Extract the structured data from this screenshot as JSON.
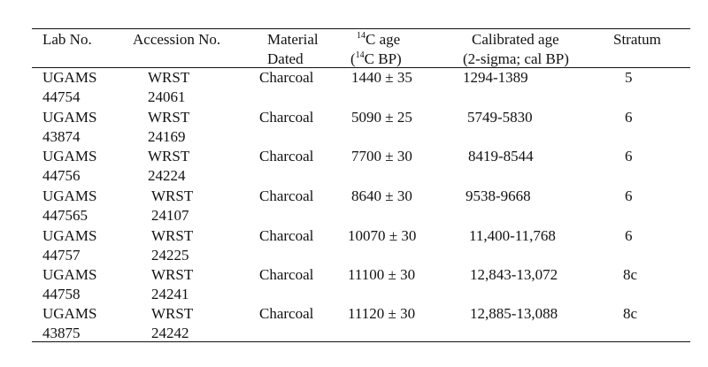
{
  "table": {
    "headers": {
      "lab_no": "Lab No.",
      "accession_no": "Accession No.",
      "material_line1": "Material",
      "material_line2": "Dated",
      "c14_line1_sup": "14",
      "c14_line1_text": "C age",
      "c14_line2_pre": "(",
      "c14_line2_sup": "14",
      "c14_line2_text": "C BP)",
      "calibrated_line1": "Calibrated age",
      "calibrated_line2": "(2-sigma; cal BP)",
      "stratum": "Stratum"
    },
    "rows": [
      {
        "lab1": "UGAMS",
        "lab2": "44754",
        "acc1": "WRST",
        "acc2": "24061",
        "material": "Charcoal",
        "c14_age": "1440 ± 35",
        "calibrated": "1294-1389",
        "stratum": "5"
      },
      {
        "lab1": "UGAMS",
        "lab2": "43874",
        "acc1": "WRST",
        "acc2": "24169",
        "material": "Charcoal",
        "c14_age": "5090 ± 25",
        "calibrated": "5749-5830",
        "stratum": "6"
      },
      {
        "lab1": "UGAMS",
        "lab2": "44756",
        "acc1": "WRST",
        "acc2": "24224",
        "material": "Charcoal",
        "c14_age": "7700 ± 30",
        "calibrated": "8419-8544",
        "stratum": "6"
      },
      {
        "lab1": "UGAMS",
        "lab2": "447565",
        "acc1": "WRST",
        "acc2": "24107",
        "material": "Charcoal",
        "c14_age": "8640 ± 30",
        "calibrated": "9538-9668",
        "stratum": "6"
      },
      {
        "lab1": "UGAMS",
        "lab2": "44757",
        "acc1": "WRST",
        "acc2": "24225",
        "material": "Charcoal",
        "c14_age": "10070 ± 30",
        "calibrated": "11,400-11,768",
        "stratum": "6"
      },
      {
        "lab1": "UGAMS",
        "lab2": "44758",
        "acc1": "WRST",
        "acc2": "24241",
        "material": "Charcoal",
        "c14_age": "11100 ± 30",
        "calibrated": "12,843-13,072",
        "stratum": "8c"
      },
      {
        "lab1": "UGAMS",
        "lab2": "43875",
        "acc1": "WRST",
        "acc2": "24242",
        "material": "Charcoal",
        "c14_age": "11120 ± 30",
        "calibrated": "12,885-13,088",
        "stratum": "8c"
      }
    ]
  }
}
